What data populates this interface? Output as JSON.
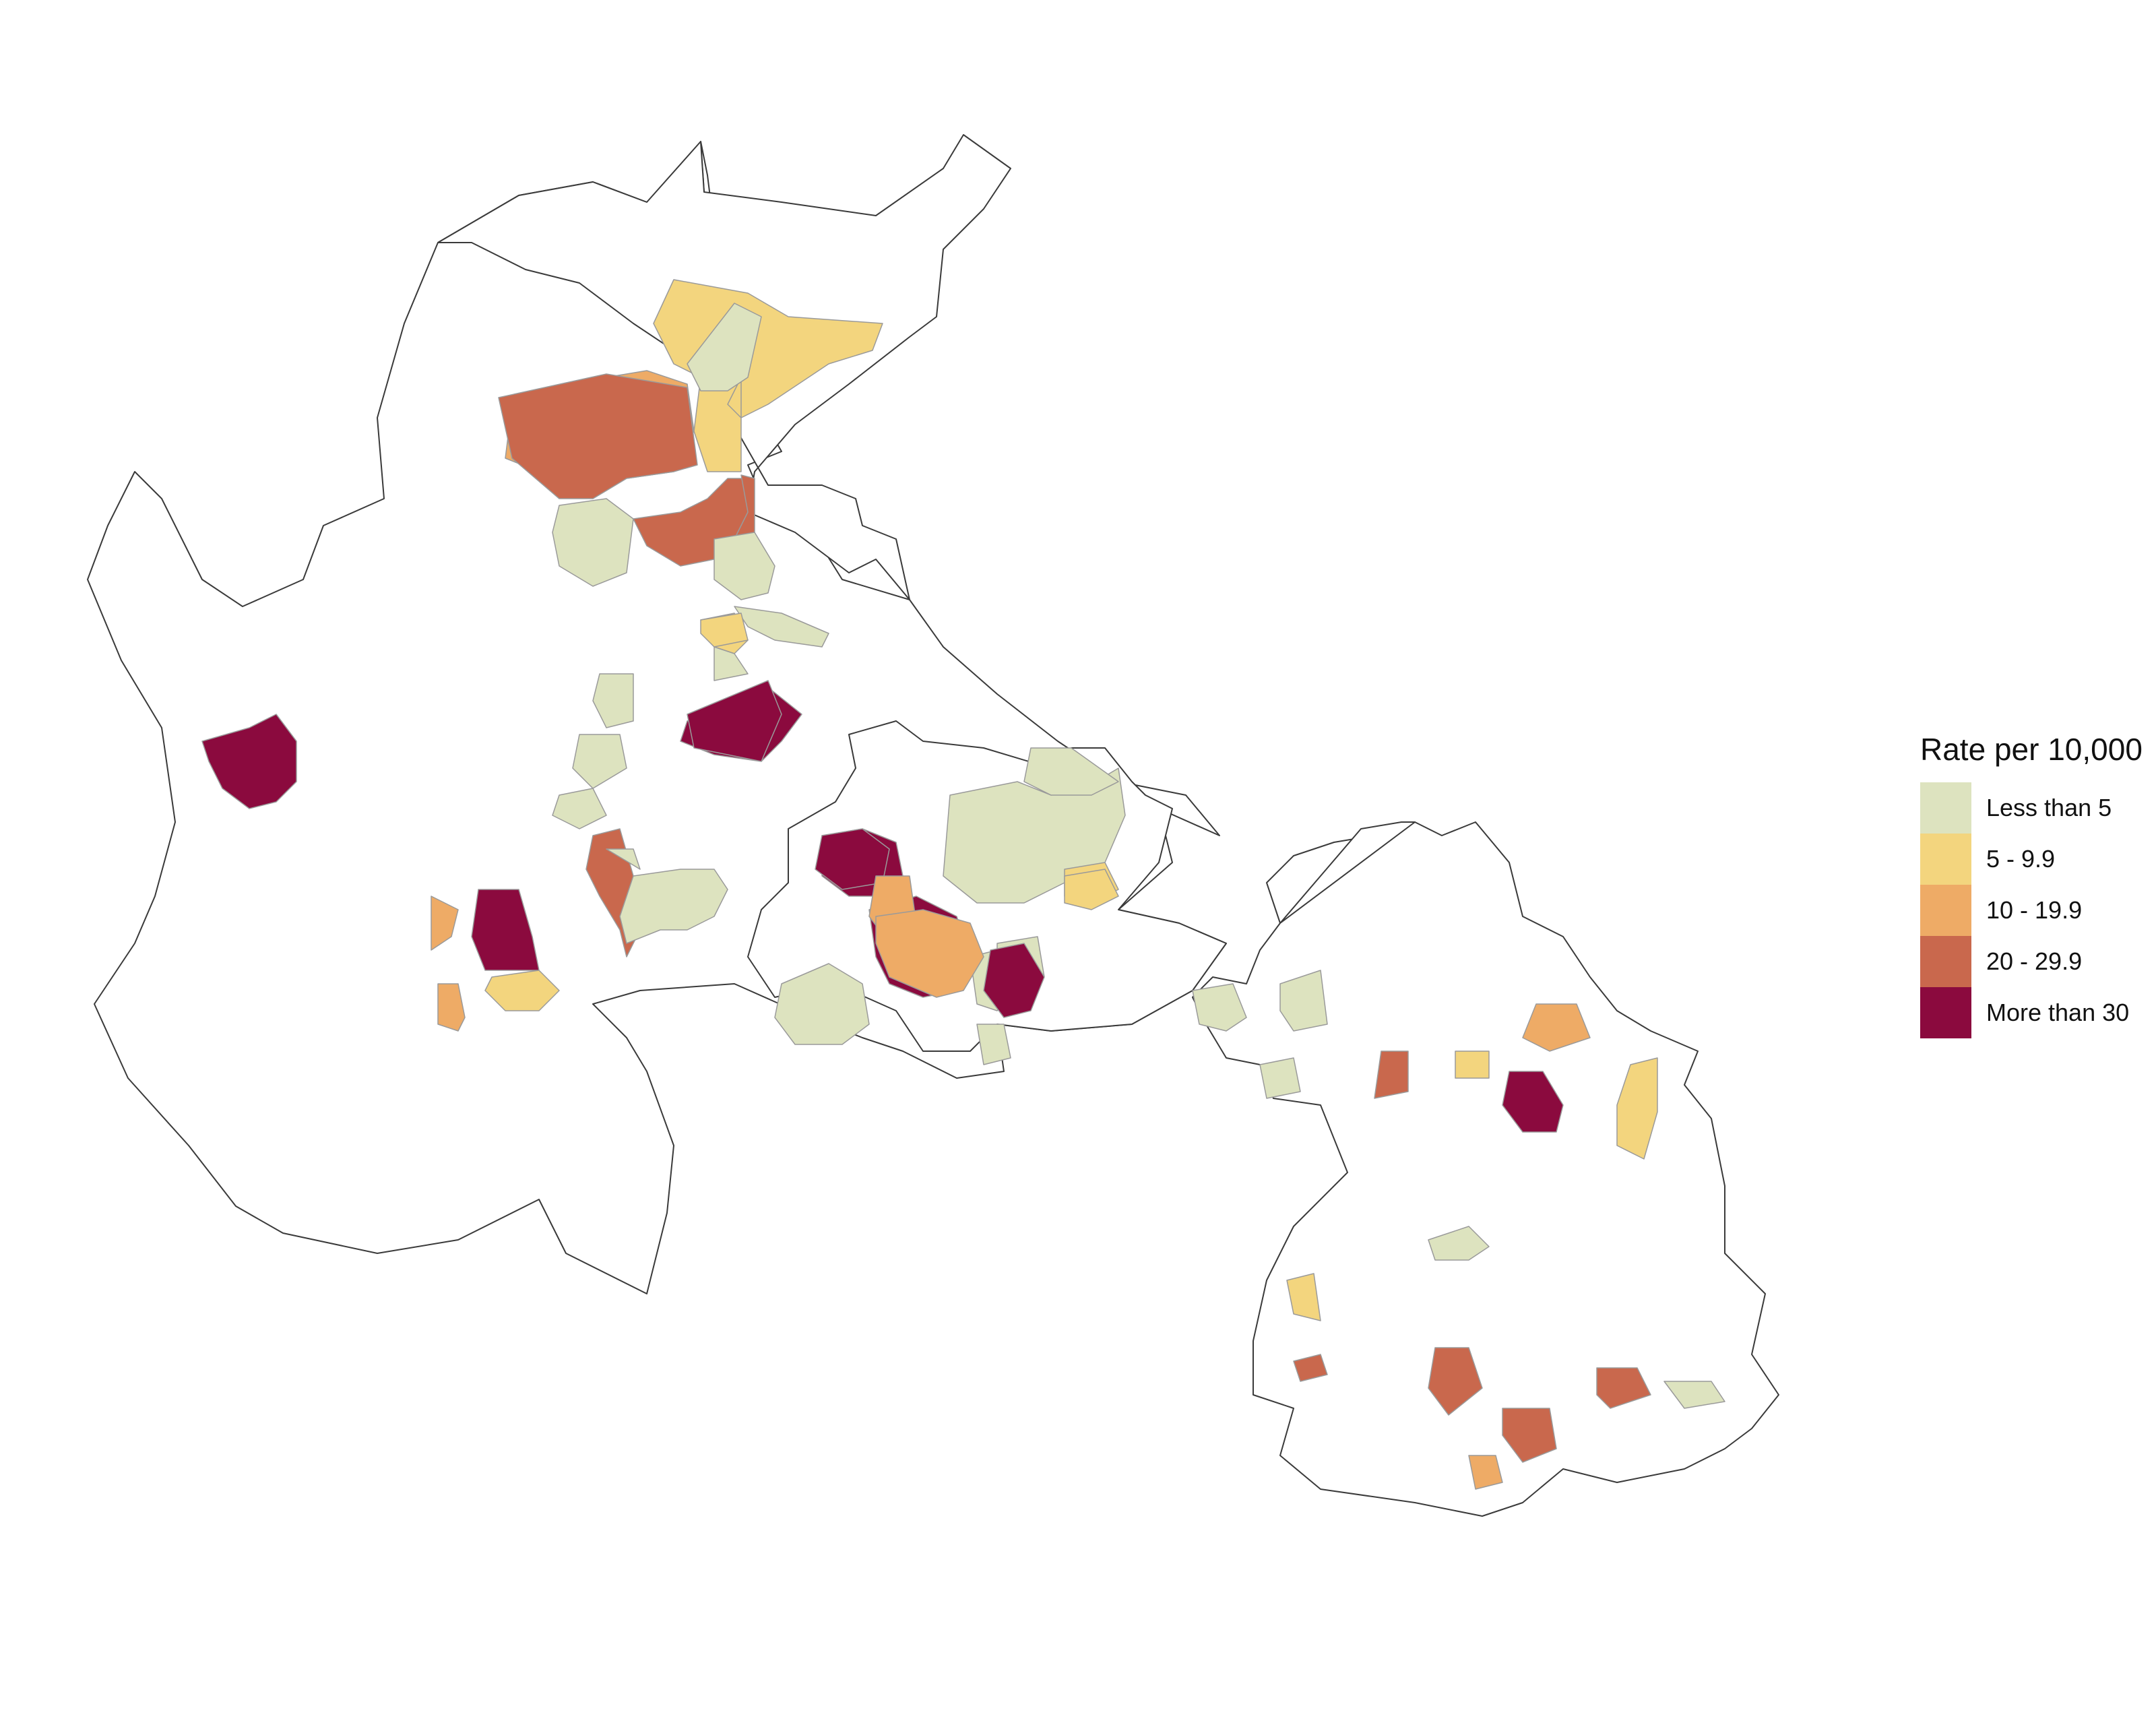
{
  "legend": {
    "title": "Rate per 10,000",
    "classes": [
      {
        "label": "Less than 5",
        "color": "#dde3bf"
      },
      {
        "label": "5 - 9.9",
        "color": "#f3d57e"
      },
      {
        "label": "10 - 19.9",
        "color": "#eeab66"
      },
      {
        "label": "20 - 29.9",
        "color": "#c9684d"
      },
      {
        "label": "More than 30",
        "color": "#8b0a3e"
      }
    ]
  },
  "map_areas": [
    {
      "class": 1
    },
    {
      "class": 2
    },
    {
      "class": 3
    },
    {
      "class": 0
    },
    {
      "class": 3
    },
    {
      "class": 3
    },
    {
      "class": 0
    },
    {
      "class": 1
    },
    {
      "class": 0
    },
    {
      "class": 4
    },
    {
      "class": 0
    },
    {
      "class": 0
    },
    {
      "class": 0
    },
    {
      "class": 0
    },
    {
      "class": 4
    },
    {
      "class": 3
    },
    {
      "class": 4
    },
    {
      "class": 1
    },
    {
      "class": 2
    },
    {
      "class": 4
    },
    {
      "class": 0
    },
    {
      "class": 1
    },
    {
      "class": 2
    },
    {
      "class": 0
    },
    {
      "class": 0
    },
    {
      "class": 4
    },
    {
      "class": 0
    },
    {
      "class": 1
    },
    {
      "class": 4
    },
    {
      "class": 0
    },
    {
      "class": 0
    },
    {
      "class": 0
    },
    {
      "class": 0
    },
    {
      "class": 1
    },
    {
      "class": 4
    },
    {
      "class": 0
    },
    {
      "class": 2
    },
    {
      "class": 2
    },
    {
      "class": 4
    },
    {
      "class": 0
    },
    {
      "class": 4
    },
    {
      "class": 1
    },
    {
      "class": 2
    },
    {
      "class": 1
    },
    {
      "class": 0
    },
    {
      "class": 3
    },
    {
      "class": 0
    },
    {
      "class": 0
    },
    {
      "class": 1
    },
    {
      "class": 3
    },
    {
      "class": 3
    },
    {
      "class": 2
    },
    {
      "class": 3
    },
    {
      "class": 3
    },
    {
      "class": 0
    },
    {
      "class": 0
    }
  ]
}
